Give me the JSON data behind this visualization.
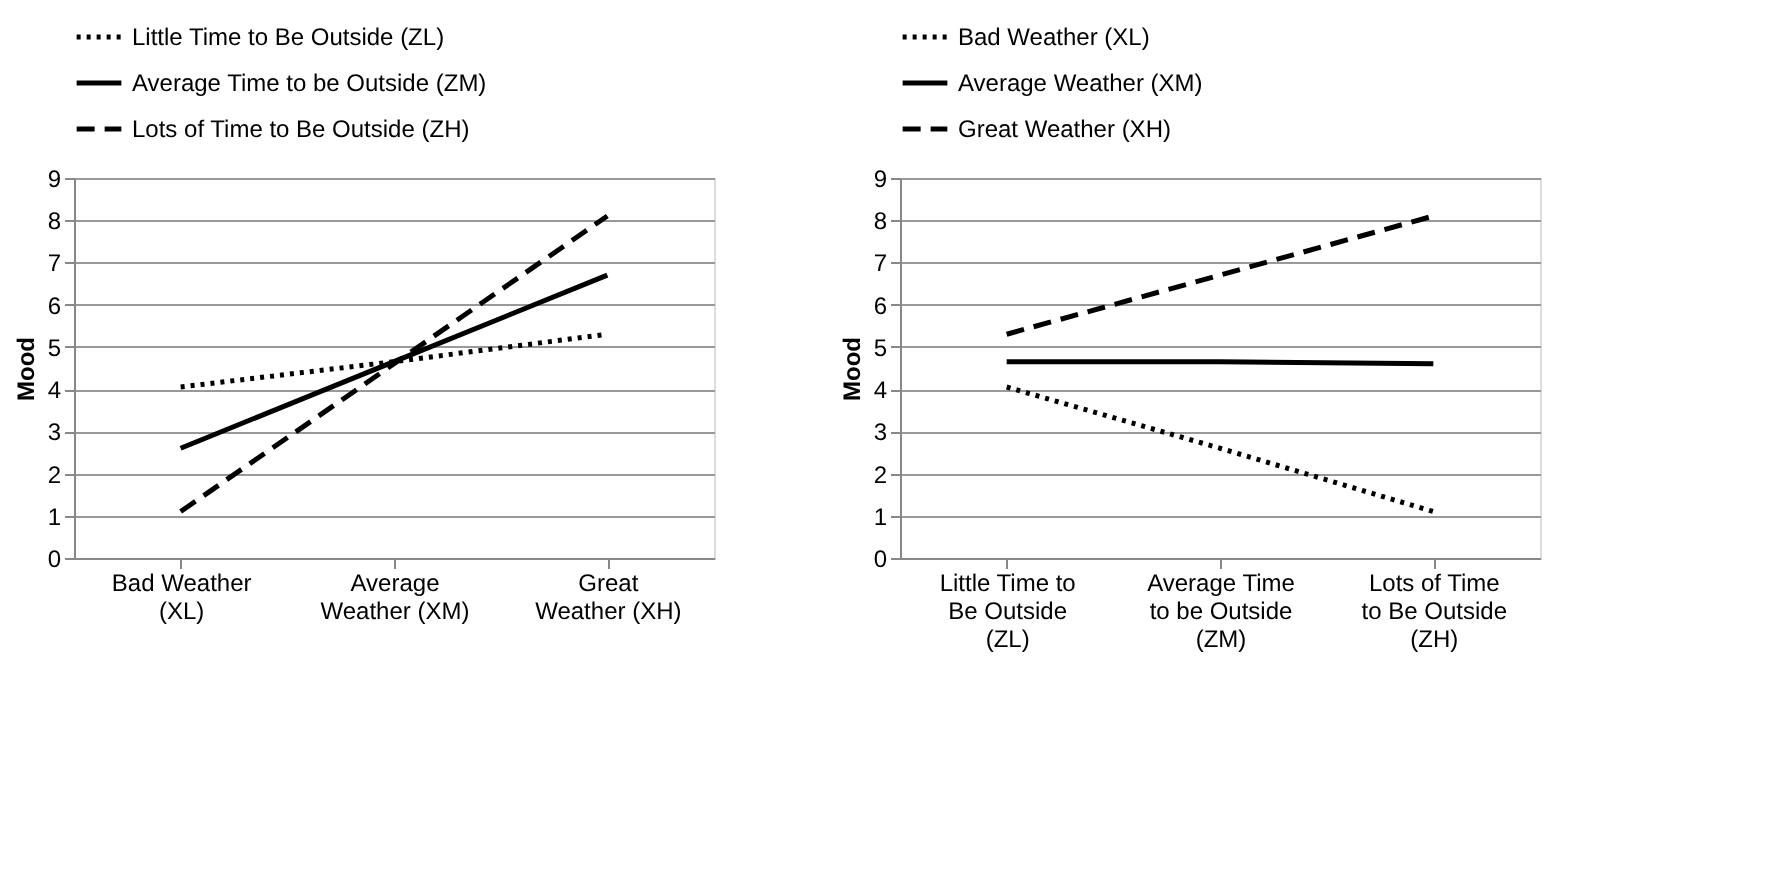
{
  "chart_data": [
    {
      "type": "line",
      "ylabel": "Mood",
      "categories": [
        "Bad Weather\n(XL)",
        "Average\nWeather (XM)",
        "Great\nWeather (XH)"
      ],
      "ylim": [
        0,
        9
      ],
      "yticks": [
        0,
        1,
        2,
        3,
        4,
        5,
        6,
        7,
        8,
        9
      ],
      "grid": "y",
      "legend": "top",
      "series": [
        {
          "name": "Little Time to Be Outside (ZL)",
          "color": "#000000",
          "line_style": "dotted",
          "values": [
            4.05,
            4.65,
            5.3
          ]
        },
        {
          "name": "Average Time to be Outside (ZM)",
          "color": "#000000",
          "line_style": "solid",
          "values": [
            2.6,
            4.65,
            6.7
          ]
        },
        {
          "name": "Lots of Time to Be Outside (ZH)",
          "color": "#000000",
          "line_style": "dashed",
          "values": [
            1.1,
            4.6,
            8.1
          ]
        }
      ]
    },
    {
      "type": "line",
      "ylabel": "Mood",
      "categories": [
        "Little Time to\nBe Outside\n(ZL)",
        "Average Time\nto be Outside\n(ZM)",
        "Lots of Time\nto Be Outside\n(ZH)"
      ],
      "ylim": [
        0,
        9
      ],
      "yticks": [
        0,
        1,
        2,
        3,
        4,
        5,
        6,
        7,
        8,
        9
      ],
      "grid": "y",
      "legend": "top",
      "series": [
        {
          "name": "Bad Weather (XL)",
          "color": "#000000",
          "line_style": "dotted",
          "values": [
            4.05,
            2.6,
            1.1
          ]
        },
        {
          "name": "Average Weather (XM)",
          "color": "#000000",
          "line_style": "solid",
          "values": [
            4.65,
            4.65,
            4.6
          ]
        },
        {
          "name": "Great Weather (XH)",
          "color": "#000000",
          "line_style": "dashed",
          "values": [
            5.3,
            6.7,
            8.1
          ]
        }
      ]
    }
  ]
}
